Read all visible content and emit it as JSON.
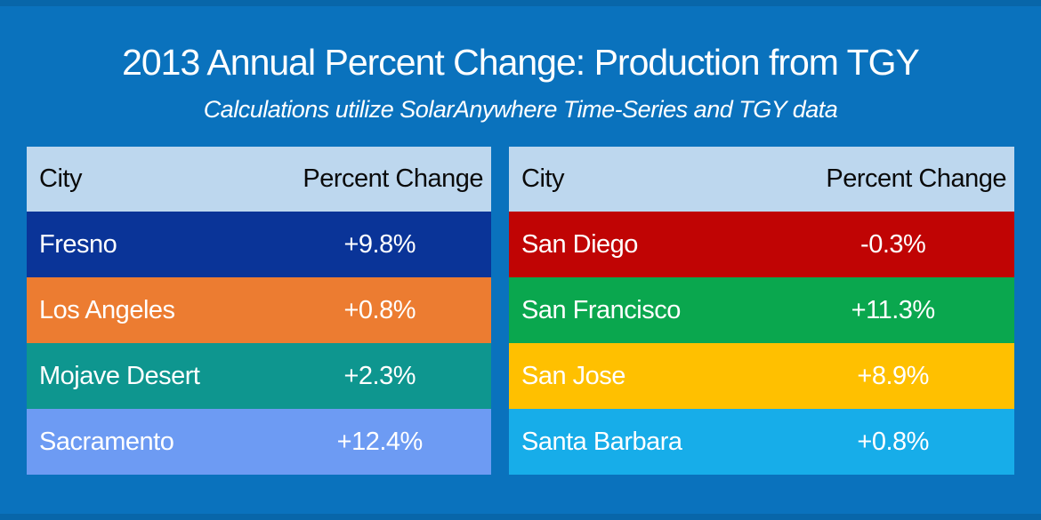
{
  "page": {
    "background": "#0A72BD",
    "edge_strip_color": "#0866A9",
    "header_bg": "#BDD7EE",
    "header_text_color": "#0A0A0A"
  },
  "header": {
    "title": "2013 Annual Percent Change: Production from TGY",
    "subtitle": "Calculations utilize SolarAnywhere Time-Series and TGY data"
  },
  "tables": [
    {
      "columns": [
        "City",
        "Percent Change"
      ],
      "rows": [
        {
          "city": "Fresno",
          "value": "+9.8%",
          "color": "#0A3498"
        },
        {
          "city": "Los Angeles",
          "value": "+0.8%",
          "color": "#EC7C31"
        },
        {
          "city": "Mojave Desert",
          "value": "+2.3%",
          "color": "#0E968F"
        },
        {
          "city": "Sacramento",
          "value": "+12.4%",
          "color": "#6D9BF3"
        }
      ]
    },
    {
      "columns": [
        "City",
        "Percent Change"
      ],
      "rows": [
        {
          "city": "San Diego",
          "value": "-0.3%",
          "color": "#C00404"
        },
        {
          "city": "San Francisco",
          "value": "+11.3%",
          "color": "#0AA74E"
        },
        {
          "city": "San Jose",
          "value": "+8.9%",
          "color": "#FFC000"
        },
        {
          "city": "Santa Barbara",
          "value": "+0.8%",
          "color": "#17ADE9"
        }
      ]
    }
  ],
  "chart_data": [
    {
      "type": "table",
      "title": "2013 Annual Percent Change: Production from TGY",
      "subtitle": "Calculations utilize SolarAnywhere Time-Series and TGY data",
      "columns": [
        "City",
        "Percent Change"
      ],
      "rows": [
        [
          "Fresno",
          "+9.8%"
        ],
        [
          "Los Angeles",
          "+0.8%"
        ],
        [
          "Mojave Desert",
          "+2.3%"
        ],
        [
          "Sacramento",
          "+12.4%"
        ]
      ],
      "values_numeric": [
        9.8,
        0.8,
        2.3,
        12.4
      ]
    },
    {
      "type": "table",
      "title": "2013 Annual Percent Change: Production from TGY",
      "columns": [
        "City",
        "Percent Change"
      ],
      "rows": [
        [
          "San Diego",
          "-0.3%"
        ],
        [
          "San Francisco",
          "+11.3%"
        ],
        [
          "San Jose",
          "+8.9%"
        ],
        [
          "Santa Barbara",
          "+0.8%"
        ]
      ],
      "values_numeric": [
        -0.3,
        11.3,
        8.9,
        0.8
      ]
    }
  ]
}
